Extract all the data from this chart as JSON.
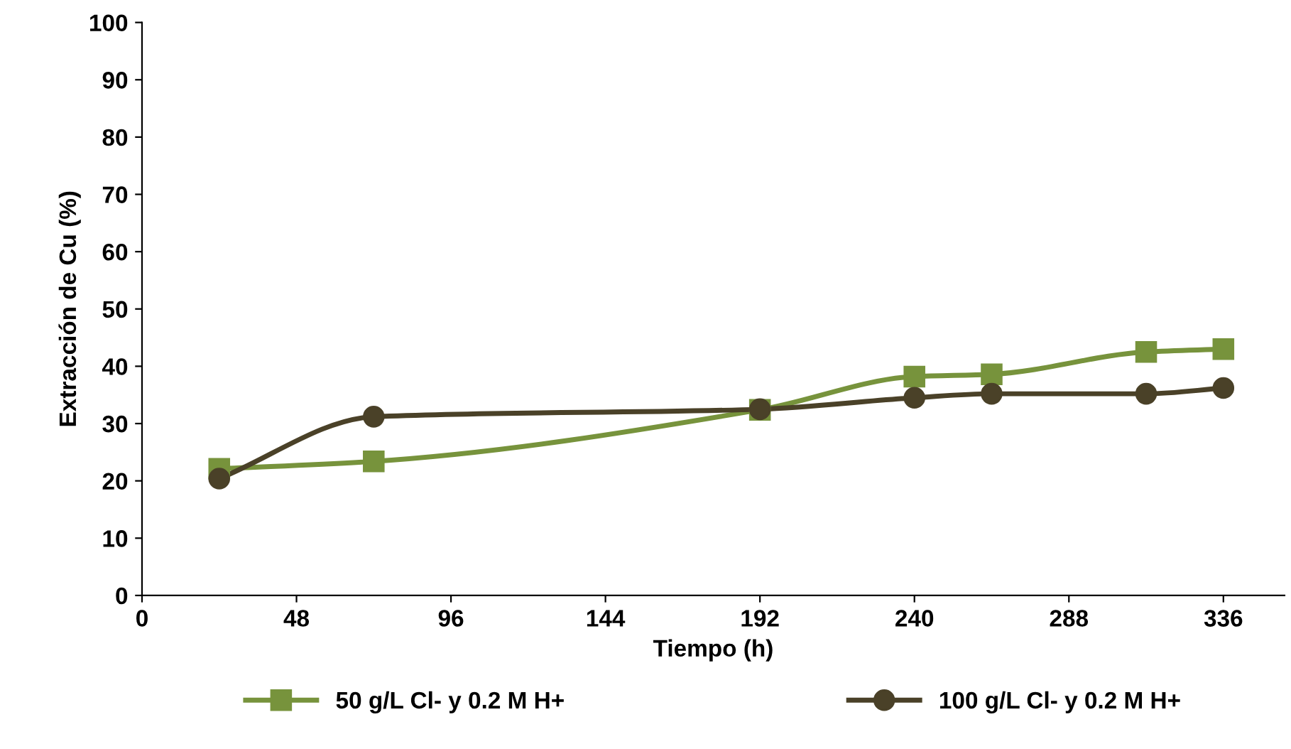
{
  "chart_data": {
    "type": "line",
    "xlabel": "Tiempo (h)",
    "ylabel": "Extracción de Cu (%)",
    "xlim": [
      0,
      355
    ],
    "xticks": [
      0,
      48,
      96,
      144,
      192,
      240,
      288,
      336
    ],
    "ylim": [
      0,
      100
    ],
    "yticks": [
      0,
      10,
      20,
      30,
      40,
      50,
      60,
      70,
      80,
      90,
      100
    ],
    "grid": false,
    "legend": "bottom",
    "line_style": "solid",
    "series": [
      {
        "name": "50 g/L Cl- y 0.2 M H+",
        "color": "#77933c",
        "marker": "square",
        "x": [
          24,
          72,
          192,
          240,
          264,
          312,
          336
        ],
        "values": [
          22.1,
          23.4,
          32.4,
          38.2,
          38.6,
          42.5,
          43.0
        ]
      },
      {
        "name": "100 g/L Cl- y 0.2 M H+",
        "color": "#4a4128",
        "marker": "circle",
        "x": [
          24,
          72,
          192,
          240,
          264,
          312,
          336
        ],
        "values": [
          20.4,
          31.2,
          32.5,
          34.5,
          35.2,
          35.2,
          36.2
        ]
      }
    ]
  }
}
